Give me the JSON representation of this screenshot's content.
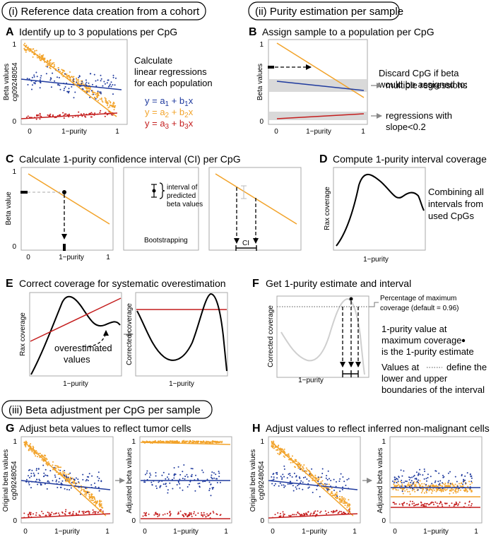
{
  "sections": {
    "s1": "(i) Reference data creation from a cohort",
    "s2": "(ii) Purity estimation per sample",
    "s3": "(iii) Beta adjustment per CpG per sample"
  },
  "colors": {
    "blue": "#1f3a9e",
    "orange": "#f2a32a",
    "red": "#c41d1d",
    "black": "#000000",
    "gray_band": "#d9d9d9",
    "light_curve": "#cfcfcf"
  },
  "panels": {
    "A": {
      "letter": "A",
      "title": "Identify up to 3 populations per CpG",
      "ylabel1": "Beta values",
      "ylabel2": "cg09248054",
      "xlabel": "1−purity",
      "yt1": "1",
      "yt0": "0",
      "xt0": "0",
      "xt1": "1",
      "note": [
        "Calculate",
        "linear regressions",
        "for each population"
      ],
      "eq1": {
        "y": "y = a",
        "s1": "1",
        "plus": " + b",
        "s2": "1",
        "x": "x"
      },
      "eq2": {
        "y": "y = a",
        "s1": "2",
        "plus": " + b",
        "s2": "2",
        "x": "x"
      },
      "eq3": {
        "y": "y = a",
        "s1": "3",
        "plus": " + b",
        "s2": "3",
        "x": "x"
      }
    },
    "B": {
      "letter": "B",
      "title": "Assign sample to a population per CpG",
      "ylabel": "Beta values",
      "xlabel": "1−purity",
      "yt1": "1",
      "yt0": "0",
      "xt0": "0",
      "xt1": "1",
      "note": [
        "Discard CpG if beta",
        "would be assigned to:"
      ],
      "opt1": "multiple regressions",
      "opt2a": "regressions with",
      "opt2b": "slope<0.2"
    },
    "C": {
      "letter": "C",
      "title": "Calculate 1-purity confidence interval (CI) per CpG",
      "ylabel": "Beta value",
      "xlabel": "1−purity",
      "yt1": "1",
      "yt0": "0",
      "xt0": "0",
      "xt1": "1",
      "boot": "Bootstrapping",
      "interval": [
        "interval of",
        "predicted",
        "beta values"
      ],
      "ci": "CI"
    },
    "D": {
      "letter": "D",
      "title": "Compute 1-purity interval coverage",
      "ylabel": "Rax coverage",
      "xlabel": "1−purity",
      "note": [
        "Combining all",
        "intervals from",
        "used CpGs"
      ]
    },
    "E": {
      "letter": "E",
      "title": "Correct coverage for systematic overestimation",
      "ylabel1": "Rax coverage",
      "ylabel2": "Corrected coverage",
      "xlabel": "1−purity",
      "over": [
        "overestimated",
        "values"
      ]
    },
    "F": {
      "letter": "F",
      "title": "Get 1-purity estimate and interval",
      "ylabel": "Corrected coverage",
      "xlabel": "1−purity",
      "pct": [
        "Percentage of maximum",
        "coverage (default = 0.96)"
      ],
      "note1": [
        "1-purity value at",
        "maximum coverage",
        "is the 1-purity estimate"
      ],
      "note2a": "Values at",
      "note2b": "define the",
      "note2c": [
        "lower and upper",
        "boundaries of the interval"
      ]
    },
    "G": {
      "letter": "G",
      "title": "Adjust beta values to reflect tumor cells",
      "ylabel_l1": "Original beta values",
      "ylabel_l2": "cg09248054",
      "ylabel_r": "Adjusted beta values",
      "xlabel": "1−purity",
      "yt1": "1",
      "yt0": "0",
      "xt0": "0",
      "xt1": "1"
    },
    "H": {
      "letter": "H",
      "title": "Adjust values to reflect inferred non-malignant cells",
      "ylabel_l1": "Original beta values",
      "ylabel_l2": "cg09248054",
      "ylabel_r": "Adjusted beta values",
      "xlabel": "1−purity",
      "yt1": "1",
      "yt0": "0",
      "xt0": "0",
      "xt1": "1"
    }
  }
}
